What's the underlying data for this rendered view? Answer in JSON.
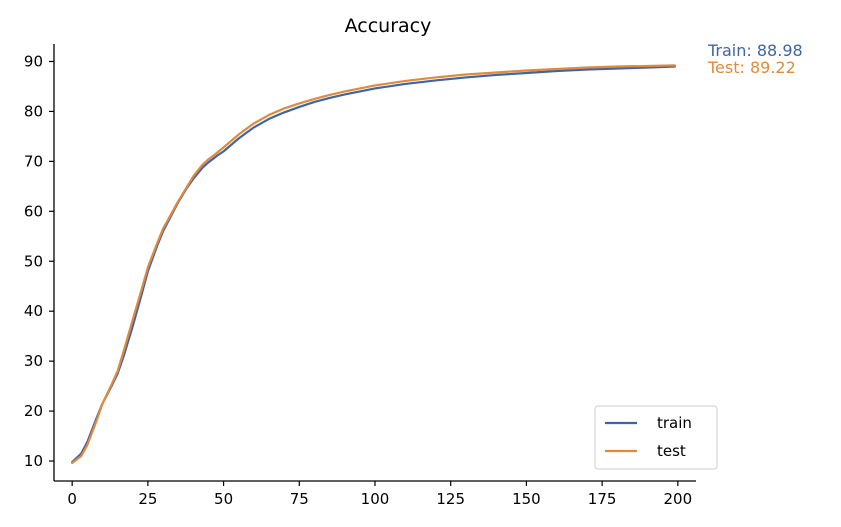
{
  "chart_data": {
    "type": "line",
    "title": "Accuracy",
    "xlabel": "",
    "ylabel": "",
    "xlim": [
      -6,
      206
    ],
    "ylim": [
      6,
      93.5
    ],
    "xticks": [
      0,
      25,
      50,
      75,
      100,
      125,
      150,
      175,
      200
    ],
    "yticks": [
      10,
      20,
      30,
      40,
      50,
      60,
      70,
      80,
      90
    ],
    "grid": false,
    "legend_position": "bottom-right",
    "series": [
      {
        "name": "train",
        "color": "#3e65a5",
        "x": [
          0,
          3,
          5,
          8,
          10,
          13,
          15,
          17,
          20,
          23,
          25,
          28,
          30,
          33,
          35,
          38,
          40,
          43,
          45,
          48,
          50,
          55,
          60,
          65,
          70,
          75,
          80,
          85,
          90,
          95,
          100,
          110,
          120,
          130,
          140,
          150,
          160,
          170,
          180,
          190,
          199
        ],
        "y": [
          9.8,
          11.5,
          13.8,
          18.5,
          21.5,
          25.0,
          27.5,
          31.0,
          37.0,
          43.5,
          48.0,
          53.0,
          56.0,
          59.5,
          61.8,
          64.8,
          66.5,
          68.7,
          69.8,
          71.2,
          72.0,
          74.6,
          76.8,
          78.5,
          79.8,
          80.9,
          81.9,
          82.7,
          83.4,
          84.0,
          84.6,
          85.5,
          86.2,
          86.8,
          87.3,
          87.7,
          88.1,
          88.4,
          88.6,
          88.8,
          88.98
        ]
      },
      {
        "name": "test",
        "color": "#e08a3c",
        "x": [
          0,
          3,
          5,
          8,
          10,
          13,
          15,
          17,
          20,
          23,
          25,
          28,
          30,
          33,
          35,
          38,
          40,
          43,
          45,
          48,
          50,
          55,
          60,
          65,
          70,
          75,
          80,
          85,
          90,
          95,
          100,
          110,
          120,
          130,
          140,
          150,
          160,
          170,
          180,
          190,
          199
        ],
        "y": [
          9.6,
          11.0,
          13.2,
          18.0,
          21.5,
          25.3,
          28.0,
          32.0,
          38.3,
          44.5,
          48.8,
          53.5,
          56.5,
          59.8,
          62.0,
          65.0,
          67.0,
          69.3,
          70.4,
          71.8,
          72.8,
          75.4,
          77.6,
          79.3,
          80.6,
          81.6,
          82.5,
          83.3,
          84.0,
          84.6,
          85.2,
          86.1,
          86.8,
          87.4,
          87.8,
          88.2,
          88.5,
          88.8,
          89.0,
          89.1,
          89.22
        ]
      }
    ],
    "annotations": [
      {
        "text": "Train: 88.98",
        "color": "#3e65a5"
      },
      {
        "text": "Test: 89.22",
        "color": "#e08a3c"
      }
    ]
  }
}
